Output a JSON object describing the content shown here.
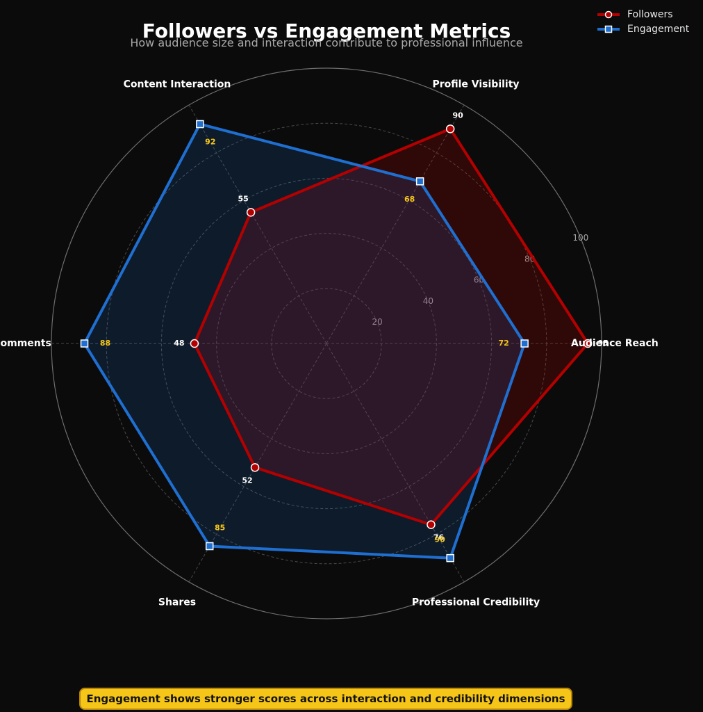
{
  "chart_data": {
    "type": "radar",
    "title": "Followers vs Engagement Metrics",
    "subtitle": "How audience size and interaction contribute to professional influence",
    "categories": [
      "Audience Reach",
      "Profile Visibility",
      "Content Interaction",
      "Comments",
      "Shares",
      "Professional Credibility"
    ],
    "series": [
      {
        "name": "Followers",
        "values": [
          95,
          90,
          55,
          48,
          52,
          76
        ],
        "color": "#b30000",
        "marker": "circle"
      },
      {
        "name": "Engagement",
        "values": [
          72,
          68,
          92,
          88,
          85,
          90
        ],
        "color": "#1f6fd1",
        "marker": "square"
      }
    ],
    "r_ticks": [
      20,
      40,
      60,
      80,
      100
    ],
    "r_range": [
      0,
      100
    ],
    "grid": true,
    "legend_position": "top-right",
    "label_colors": {
      "Followers": "#ffffff",
      "Engagement": "#f5c518"
    }
  },
  "annotation": "Engagement shows stronger scores across interaction and credibility dimensions",
  "colors": {
    "background": "#0b0b0b",
    "annotation_bg": "#f5c518",
    "annotation_border": "#b8860b"
  }
}
